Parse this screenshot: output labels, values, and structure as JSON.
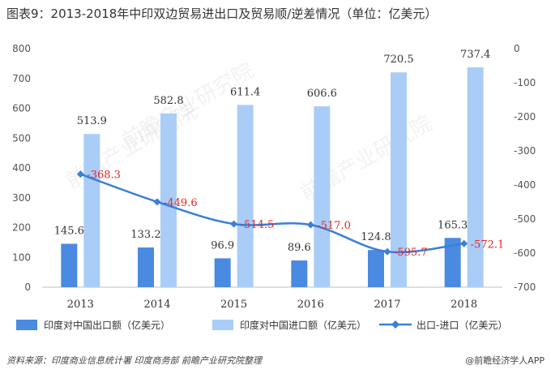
{
  "title": "图表9：2013-2018年中印双边贸易进出口及贸易顺/逆差情况（单位：亿美元）",
  "source": "资料来源：印度商业信息统计署 印度商务部 前瞻产业研究院整理",
  "credit": "@前瞻经济学人APP",
  "watermark": "前瞻产业研究院",
  "colors": {
    "export": "#4a8ae0",
    "import": "#a9cdf7",
    "balance": "#3a7fd9",
    "balance_label": "#e8231f"
  },
  "chart_data": {
    "type": "bar",
    "title": "2013-2018年中印双边贸易进出口及贸易顺/逆差情况（单位：亿美元）",
    "categories": [
      "2013",
      "2014",
      "2015",
      "2016",
      "2017",
      "2018"
    ],
    "series": [
      {
        "name": "印度对中国出口额（亿美元）",
        "type": "bar",
        "axis": "left",
        "values": [
          145.6,
          133.2,
          96.9,
          89.6,
          124.8,
          165.3
        ],
        "labels": [
          "145.6",
          "133.2",
          "96.9",
          "89.6",
          "124.8",
          "165.3"
        ]
      },
      {
        "name": "印度对中国进口额（亿美元）",
        "type": "bar",
        "axis": "left",
        "values": [
          513.9,
          582.8,
          611.4,
          606.6,
          720.5,
          737.4
        ],
        "labels": [
          "513.9",
          "582.8",
          "611.4",
          "606.6",
          "720.5",
          "737.4"
        ]
      },
      {
        "name": "出口-进口（亿美元）",
        "type": "line",
        "axis": "right",
        "values": [
          -368.3,
          -449.6,
          -514.5,
          -517.0,
          -595.7,
          -572.1
        ],
        "labels": [
          "-368.3",
          "-449.6",
          "-514.5",
          "-517.0",
          "-595.7",
          "-572.1"
        ]
      }
    ],
    "y_left": {
      "min": 0,
      "max": 800,
      "ticks": [
        "0",
        "100",
        "200",
        "300",
        "400",
        "500",
        "600",
        "700",
        "800"
      ]
    },
    "y_right": {
      "min": -700,
      "max": 0,
      "ticks": [
        "0",
        "-100",
        "-200",
        "-300",
        "-400",
        "-500",
        "-600",
        "-700"
      ]
    },
    "legend_position": "bottom",
    "grid": false
  }
}
